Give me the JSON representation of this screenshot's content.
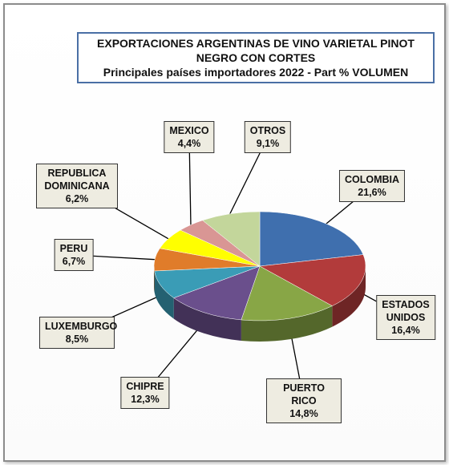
{
  "chart_data": {
    "type": "pie",
    "title": "EXPORTACIONES ARGENTINAS DE VINO VARIETAL PINOT NEGRO CON CORTES",
    "subtitle": "Principales países importadores 2022 - Part % VOLUMEN",
    "categories": [
      "COLOMBIA",
      "ESTADOS UNIDOS",
      "PUERTO RICO",
      "CHIPRE",
      "LUXEMBURGO",
      "PERU",
      "REPUBLICA DOMINICANA",
      "MEXICO",
      "OTROS"
    ],
    "values": [
      21.6,
      16.4,
      14.8,
      12.3,
      8.5,
      6.7,
      6.2,
      4.4,
      9.1
    ],
    "value_labels": [
      "21,6%",
      "16,4%",
      "14,8%",
      "12,3%",
      "8,5%",
      "6,7%",
      "6,2%",
      "4,4%",
      "9,1%"
    ],
    "colors": [
      "#3f6fae",
      "#b23b3b",
      "#88a646",
      "#6a4f8c",
      "#3a9cb6",
      "#e07c2a",
      "#ffff00",
      "#d99694",
      "#c3d69b"
    ]
  }
}
